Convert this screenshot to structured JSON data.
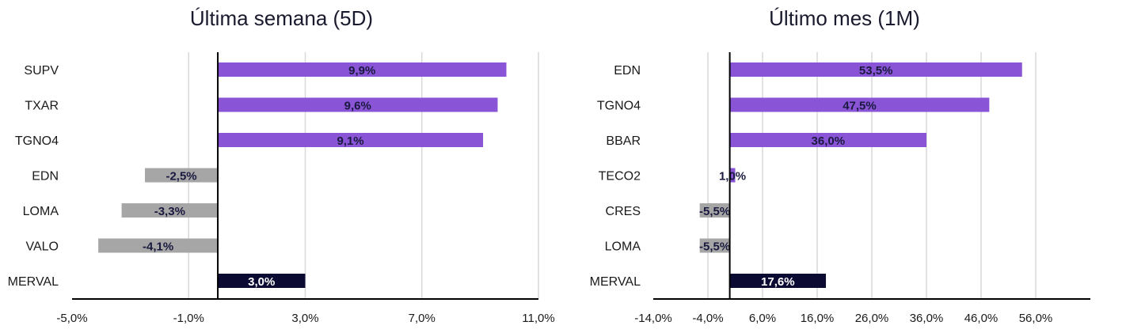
{
  "colors": {
    "positive": "#8a54d6",
    "negative": "#a6a6a6",
    "index": "#0b0a33",
    "label_dark": "#1a1a40",
    "label_light": "#ffffff",
    "grid": "#d9d9d9",
    "axis": "#000000"
  },
  "chart_data": [
    {
      "type": "bar",
      "orientation": "horizontal",
      "title": "Última semana (5D)",
      "categories": [
        "SUPV",
        "TXAR",
        "TGNO4",
        "EDN",
        "LOMA",
        "VALO",
        "MERVAL"
      ],
      "values": [
        9.9,
        9.6,
        9.1,
        -2.5,
        -3.3,
        -4.1,
        3.0
      ],
      "value_labels": [
        "9,9%",
        "9,6%",
        "9,1%",
        "-2,5%",
        "-3,3%",
        "-4,1%",
        "3,0%"
      ],
      "xlim": [
        -5.0,
        11.0
      ],
      "xticks": [
        -5.0,
        -1.0,
        3.0,
        7.0,
        11.0
      ],
      "xtick_labels": [
        "-5,0%",
        "-1,0%",
        "3,0%",
        "7,0%",
        "11,0%"
      ],
      "grid": true
    },
    {
      "type": "bar",
      "orientation": "horizontal",
      "title": "Último mes (1M)",
      "categories": [
        "EDN",
        "TGNO4",
        "BBAR",
        "TECO2",
        "CRES",
        "LOMA",
        "MERVAL"
      ],
      "values": [
        53.5,
        47.5,
        36.0,
        1.0,
        -5.5,
        -5.5,
        17.6
      ],
      "value_labels": [
        "53,5%",
        "47,5%",
        "36,0%",
        "1,0%",
        "-5,5%",
        "-5,5%",
        "17,6%"
      ],
      "xlim": [
        -14.0,
        66.0
      ],
      "xticks": [
        -14.0,
        -4.0,
        6.0,
        16.0,
        26.0,
        36.0,
        46.0,
        56.0
      ],
      "xtick_labels": [
        "-14,0%",
        "-4,0%",
        "6,0%",
        "16,0%",
        "26,0%",
        "36,0%",
        "46,0%",
        "56,0%"
      ],
      "grid": true
    }
  ]
}
